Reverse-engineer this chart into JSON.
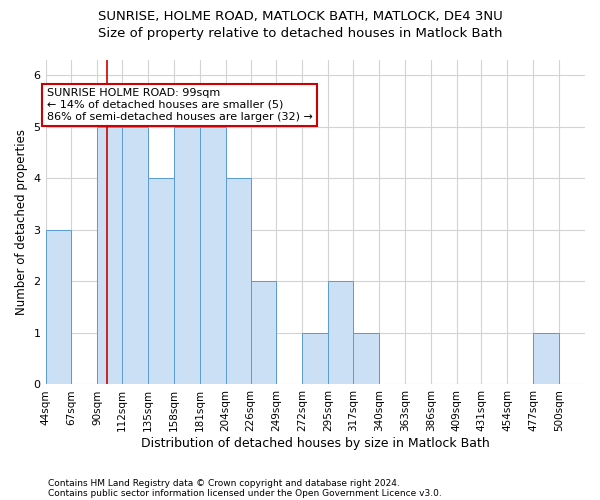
{
  "title1": "SUNRISE, HOLME ROAD, MATLOCK BATH, MATLOCK, DE4 3NU",
  "title2": "Size of property relative to detached houses in Matlock Bath",
  "xlabel": "Distribution of detached houses by size in Matlock Bath",
  "ylabel": "Number of detached properties",
  "footnote1": "Contains HM Land Registry data © Crown copyright and database right 2024.",
  "footnote2": "Contains public sector information licensed under the Open Government Licence v3.0.",
  "bin_labels": [
    "44sqm",
    "67sqm",
    "90sqm",
    "112sqm",
    "135sqm",
    "158sqm",
    "181sqm",
    "204sqm",
    "226sqm",
    "249sqm",
    "272sqm",
    "295sqm",
    "317sqm",
    "340sqm",
    "363sqm",
    "386sqm",
    "409sqm",
    "431sqm",
    "454sqm",
    "477sqm",
    "500sqm"
  ],
  "bar_values": [
    3,
    0,
    5,
    5,
    4,
    5,
    5,
    4,
    2,
    0,
    1,
    2,
    1,
    0,
    0,
    0,
    0,
    0,
    0,
    1,
    0
  ],
  "bar_color": "#cce0f5",
  "bar_edge_color": "#5b9bd5",
  "marker_value": 99,
  "bin_edges": [
    44,
    67,
    90,
    112,
    135,
    158,
    181,
    204,
    226,
    249,
    272,
    295,
    317,
    340,
    363,
    386,
    409,
    431,
    454,
    477,
    500
  ],
  "bin_width": 23,
  "marker_color": "#cc0000",
  "annotation_text": "SUNRISE HOLME ROAD: 99sqm\n← 14% of detached houses are smaller (5)\n86% of semi-detached houses are larger (32) →",
  "annotation_box_color": "#ffffff",
  "annotation_box_edge": "#cc0000",
  "ylim": [
    0,
    6.3
  ],
  "yticks": [
    0,
    1,
    2,
    3,
    4,
    5,
    6
  ],
  "background_color": "#ffffff",
  "grid_color": "#d3d3d3",
  "title1_fontsize": 9.5,
  "title2_fontsize": 9.5,
  "ylabel_fontsize": 8.5,
  "xlabel_fontsize": 9,
  "tick_fontsize": 7.5,
  "footnote_fontsize": 6.5,
  "annot_fontsize": 8
}
